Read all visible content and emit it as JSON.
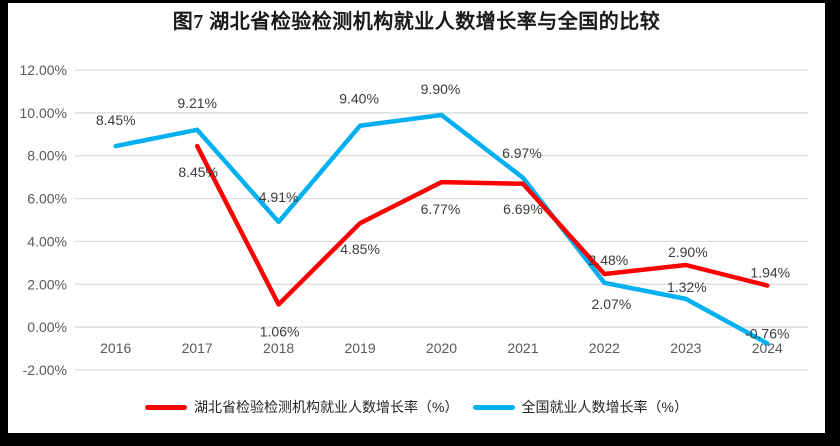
{
  "chart_data": {
    "type": "line",
    "title": "图7 湖北省检验检测机构就业人数增长率与全国的比较",
    "categories": [
      "2016",
      "2017",
      "2018",
      "2019",
      "2020",
      "2021",
      "2022",
      "2023",
      "2024"
    ],
    "series": [
      {
        "id": "hubei",
        "name": "湖北省检验检测机构就业人数增长率（%）",
        "color": "#FF0000",
        "values": [
          null,
          8.45,
          1.06,
          4.85,
          6.77,
          6.69,
          2.48,
          2.9,
          1.94
        ],
        "labels": [
          "",
          "8.45%",
          "1.06%",
          "4.85%",
          "6.77%",
          "6.69%",
          "2.48%",
          "2.90%",
          "1.94%"
        ]
      },
      {
        "id": "national",
        "name": "全国就业人数增长率（%）",
        "color": "#00B0F0",
        "values": [
          8.45,
          9.21,
          4.91,
          9.4,
          9.9,
          6.97,
          2.07,
          1.32,
          -0.76
        ],
        "labels": [
          "8.45%",
          "9.21%",
          "4.91%",
          "9.40%",
          "9.90%",
          "6.97%",
          "2.07%",
          "1.32%",
          "-0.76%"
        ]
      }
    ],
    "y_axis": {
      "min": -2,
      "max": 12,
      "step": 2,
      "tick_labels": [
        "12.00%",
        "10.00%",
        "8.00%",
        "6.00%",
        "4.00%",
        "2.00%",
        "0.00%",
        "-2.00%"
      ]
    },
    "grid": true,
    "legend_position": "bottom",
    "colors": {
      "grid": "#D9D9D9",
      "tick": "#595959",
      "label": "#3B3B3B"
    }
  }
}
